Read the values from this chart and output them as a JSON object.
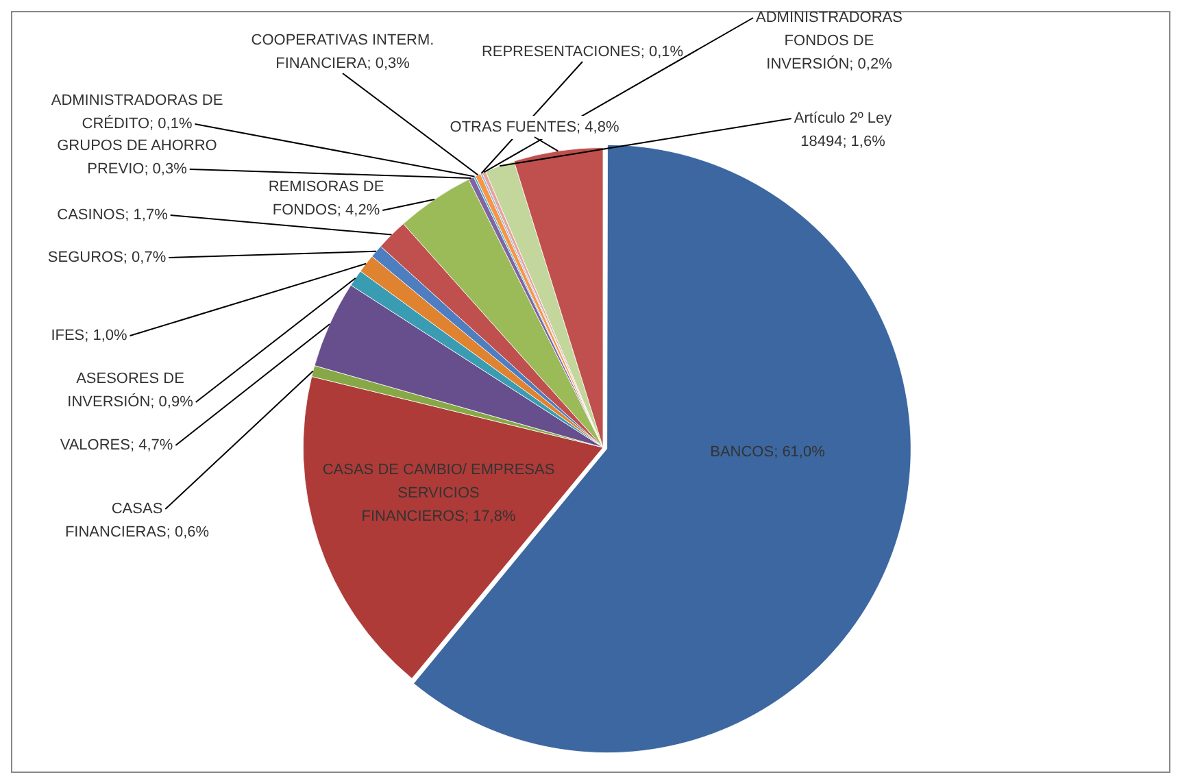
{
  "chart_data": {
    "type": "pie",
    "categories": [
      "BANCOS",
      "CASAS DE CAMBIO/ EMPRESAS SERVICIOS FINANCIEROS",
      "CASAS FINANCIERAS",
      "VALORES",
      "ASESORES DE INVERSIÓN",
      "IFES",
      "SEGUROS",
      "CASINOS",
      "REMISORAS DE FONDOS",
      "GRUPOS DE AHORRO PREVIO",
      "ADMINISTRADORAS DE CRÉDITO",
      "COOPERATIVAS INTERM. FINANCIERA",
      "REPRESENTACIONES",
      "ADMINISTRADORAS FONDOS DE INVERSIÓN",
      "Artículo 2º Ley 18494",
      "OTRAS FUENTES"
    ],
    "values": [
      61.0,
      17.8,
      0.6,
      4.7,
      0.9,
      1.0,
      0.7,
      1.7,
      4.2,
      0.3,
      0.1,
      0.3,
      0.1,
      0.2,
      1.6,
      4.8
    ],
    "value_labels": [
      "61,0%",
      "17,8%",
      "0,6%",
      "4,7%",
      "0,9%",
      "1,0%",
      "0,7%",
      "1,7%",
      "4,2%",
      "0,3%",
      "0,1%",
      "0,3%",
      "0,1%",
      "0,2%",
      "1,6%",
      "4,8%"
    ],
    "colors": [
      "#3c67a0",
      "#ae3b38",
      "#86a846",
      "#674e8c",
      "#3a9cb2",
      "#e08330",
      "#4e7ec0",
      "#c0504d",
      "#9bbb59",
      "#8064a2",
      "#4bacc6",
      "#f79646",
      "#95b3d7",
      "#e6a3a1",
      "#c3d69b",
      "#c0504d"
    ],
    "legend": false
  }
}
